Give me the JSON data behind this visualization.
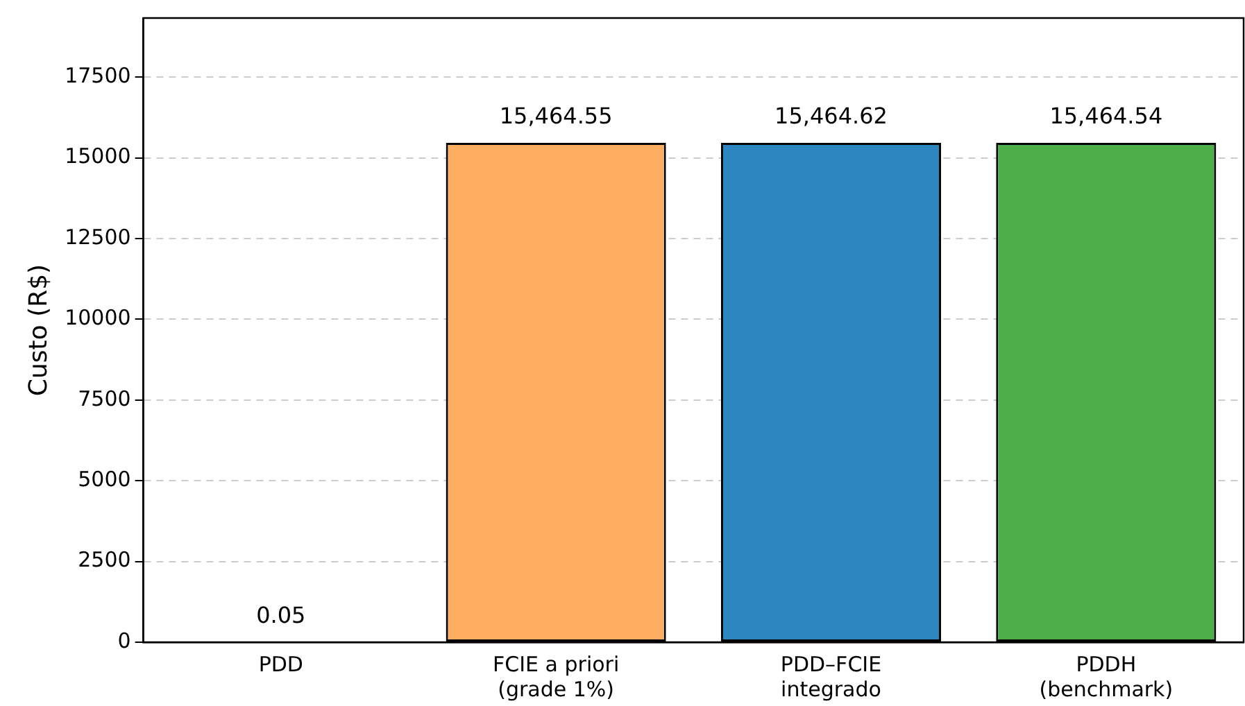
{
  "chart_data": {
    "type": "bar",
    "ylabel": "Custo (R$)",
    "categories": [
      "PDD",
      "FCIE a priori\n(grade 1%)",
      "PDD–FCIE\nintegrado",
      "PDDH\n(benchmark)"
    ],
    "values": [
      0.05,
      15464.55,
      15464.62,
      15464.54
    ],
    "colors": [
      "#000000",
      "#fdae61",
      "#2e86c1",
      "#4daf4a"
    ],
    "value_labels": [
      "0.05",
      "15,464.55",
      "15,464.62",
      "15,464.54"
    ],
    "ylim": [
      0,
      19331
    ],
    "yticks": [
      0,
      2500,
      5000,
      7500,
      10000,
      12500,
      15000,
      17500
    ],
    "grid": "y",
    "legend": false
  }
}
